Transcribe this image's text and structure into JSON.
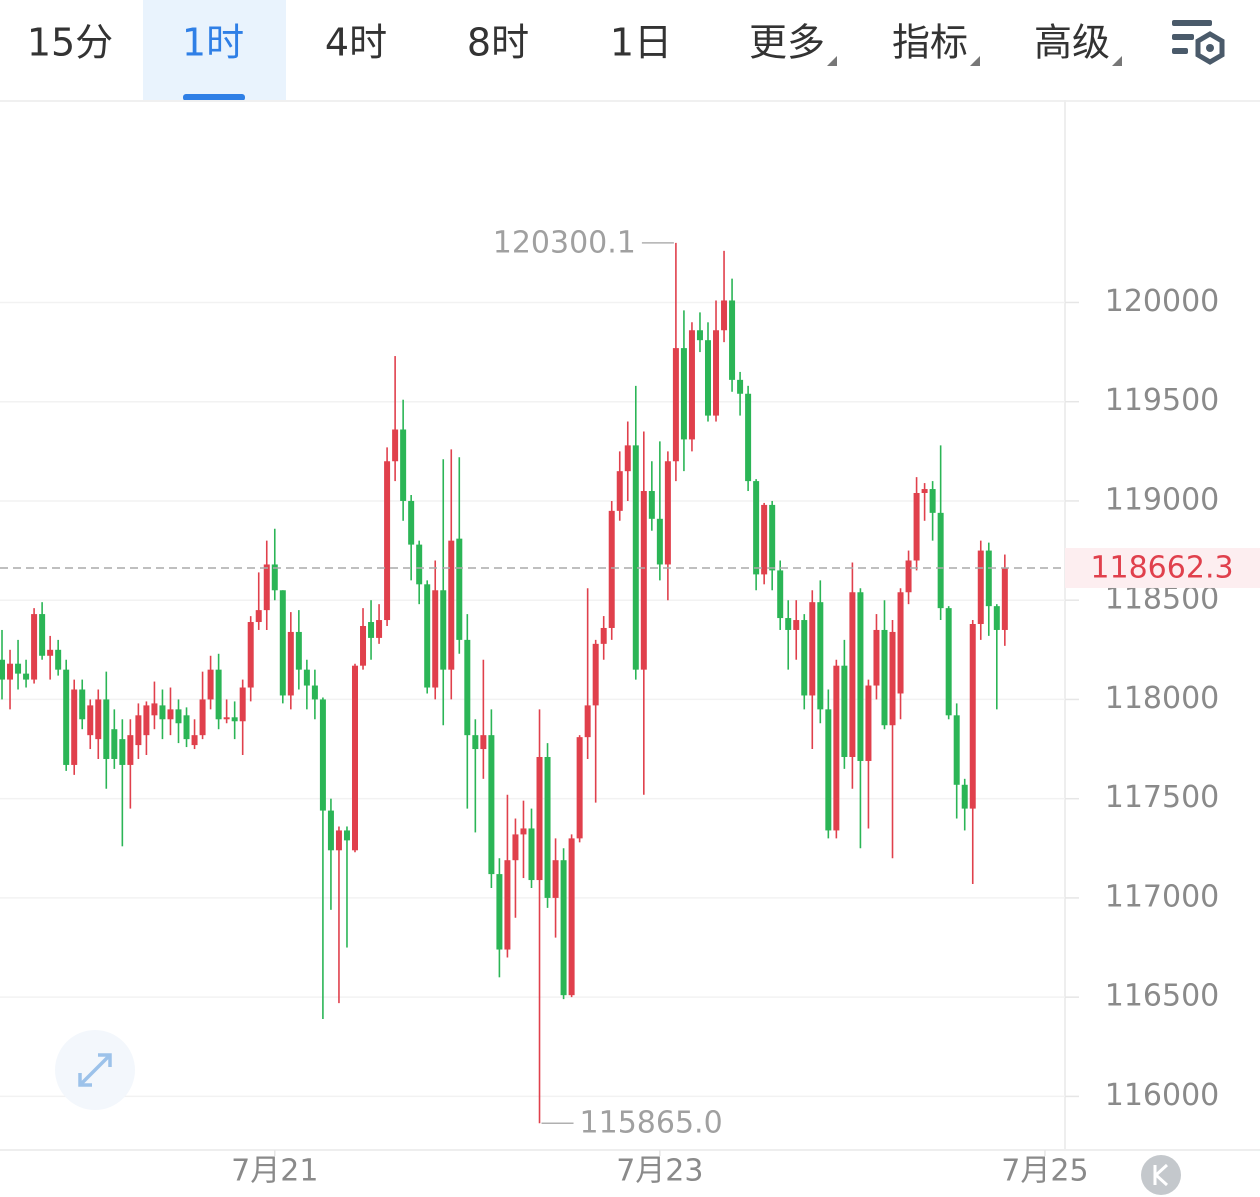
{
  "tabs": [
    "15分",
    "1时",
    "4时",
    "8时",
    "1日",
    "更多",
    "指标",
    "高级"
  ],
  "active_tab": 1,
  "chart_data": {
    "type": "candlestick",
    "up_color": "#e0404c",
    "down_color": "#2bb556",
    "xlim": [
      -0.25,
      132.5
    ],
    "xticks": [
      {
        "value": 34,
        "label": "7月21"
      },
      {
        "value": 82,
        "label": "7月23"
      },
      {
        "value": 130,
        "label": "7月25"
      }
    ],
    "ylim": [
      115730,
      121020
    ],
    "yticks": [
      116000,
      116500,
      117000,
      117500,
      118000,
      118500,
      119000,
      119500,
      120000
    ],
    "grid": true,
    "last_price": 118662.3,
    "annotations": [
      {
        "x": 84,
        "value": 120300.1,
        "label": "120300.1"
      },
      {
        "x": 67,
        "value": 115865,
        "label": "115865.0"
      }
    ],
    "candles": [
      [
        118200,
        118350,
        118000,
        118100
      ],
      [
        118100,
        118250,
        117950,
        118180
      ],
      [
        118180,
        118300,
        118050,
        118130
      ],
      [
        118130,
        118200,
        118060,
        118100
      ],
      [
        118100,
        118460,
        118080,
        118430
      ],
      [
        118430,
        118490,
        118200,
        118220
      ],
      [
        118220,
        118320,
        118100,
        118250
      ],
      [
        118250,
        118300,
        118120,
        118150
      ],
      [
        118150,
        118200,
        117640,
        117670
      ],
      [
        117670,
        118100,
        117620,
        118050
      ],
      [
        118050,
        118100,
        117850,
        117900
      ],
      [
        117820,
        118000,
        117750,
        117970
      ],
      [
        117800,
        118050,
        117700,
        118000
      ],
      [
        118000,
        118140,
        117550,
        117700
      ],
      [
        117850,
        117950,
        117650,
        117700
      ],
      [
        117800,
        117900,
        117260,
        117670
      ],
      [
        117670,
        117900,
        117450,
        117820
      ],
      [
        117770,
        117980,
        117700,
        117920
      ],
      [
        117820,
        117990,
        117720,
        117970
      ],
      [
        117920,
        118090,
        117850,
        117980
      ],
      [
        117970,
        118050,
        117800,
        117900
      ],
      [
        117900,
        118060,
        117820,
        117950
      ],
      [
        117950,
        118000,
        117780,
        117880
      ],
      [
        117920,
        117960,
        117760,
        117800
      ],
      [
        117770,
        117900,
        117750,
        117820
      ],
      [
        117820,
        118140,
        117800,
        118000
      ],
      [
        118000,
        118220,
        117950,
        118150
      ],
      [
        118150,
        118230,
        117850,
        117900
      ],
      [
        117900,
        118000,
        117880,
        117910
      ],
      [
        117910,
        117990,
        117800,
        117890
      ],
      [
        117890,
        118100,
        117720,
        118060
      ],
      [
        118060,
        118420,
        117990,
        118390
      ],
      [
        118390,
        118640,
        118350,
        118450
      ],
      [
        118450,
        118800,
        118350,
        118680
      ],
      [
        118680,
        118860,
        118500,
        118550
      ],
      [
        118550,
        118550,
        117980,
        118020
      ],
      [
        118020,
        118440,
        117950,
        118340
      ],
      [
        118340,
        118450,
        118050,
        118150
      ],
      [
        118150,
        118200,
        117950,
        118070
      ],
      [
        118070,
        118150,
        117900,
        118000
      ],
      [
        118000,
        118010,
        116390,
        117440
      ],
      [
        117440,
        117500,
        116940,
        117240
      ],
      [
        117240,
        117360,
        116470,
        117340
      ],
      [
        117340,
        117360,
        116750,
        117290
      ],
      [
        117240,
        118180,
        117230,
        118170
      ],
      [
        118170,
        118460,
        118150,
        118370
      ],
      [
        118390,
        118500,
        118200,
        118310
      ],
      [
        118310,
        118480,
        118280,
        118400
      ],
      [
        118400,
        119270,
        118370,
        119200
      ],
      [
        119200,
        119730,
        119100,
        119360
      ],
      [
        119360,
        119510,
        118900,
        119000
      ],
      [
        119000,
        119030,
        118600,
        118780
      ],
      [
        118780,
        118800,
        118480,
        118580
      ],
      [
        118580,
        118600,
        118030,
        118060
      ],
      [
        118060,
        118700,
        118000,
        118550
      ],
      [
        118550,
        119210,
        117870,
        118150
      ],
      [
        118150,
        119260,
        118000,
        118800
      ],
      [
        118810,
        119220,
        118230,
        118300
      ],
      [
        118300,
        118430,
        117450,
        117820
      ],
      [
        117820,
        117900,
        117330,
        117750
      ],
      [
        117750,
        118200,
        117600,
        117820
      ],
      [
        117820,
        117950,
        117050,
        117120
      ],
      [
        117120,
        117200,
        116600,
        116740
      ],
      [
        116740,
        117520,
        116700,
        117190
      ],
      [
        117190,
        117400,
        116900,
        117320
      ],
      [
        117320,
        117490,
        117100,
        117350
      ],
      [
        117350,
        117450,
        117050,
        117090
      ],
      [
        117090,
        117950,
        115865,
        117710
      ],
      [
        117710,
        117780,
        116950,
        117000
      ],
      [
        117000,
        117300,
        116800,
        117190
      ],
      [
        117190,
        117250,
        116490,
        116510
      ],
      [
        116510,
        117320,
        116500,
        117300
      ],
      [
        117300,
        117820,
        117280,
        117810
      ],
      [
        117810,
        118560,
        117700,
        117970
      ],
      [
        117970,
        118300,
        117480,
        118280
      ],
      [
        118280,
        118420,
        118200,
        118360
      ],
      [
        118360,
        119000,
        118300,
        118950
      ],
      [
        118950,
        119250,
        118900,
        119150
      ],
      [
        119150,
        119400,
        119000,
        119280
      ],
      [
        119280,
        119580,
        118100,
        118150
      ],
      [
        118150,
        119350,
        117520,
        119050
      ],
      [
        119050,
        119200,
        118850,
        118910
      ],
      [
        118910,
        119300,
        118600,
        118680
      ],
      [
        118680,
        119250,
        118500,
        119200
      ],
      [
        119200,
        120300.1,
        119100,
        119770
      ],
      [
        119770,
        119960,
        119150,
        119310
      ],
      [
        119310,
        119900,
        119250,
        119860
      ],
      [
        119860,
        119950,
        119750,
        119810
      ],
      [
        119810,
        119900,
        119400,
        119430
      ],
      [
        119430,
        120010,
        119400,
        119860
      ],
      [
        119860,
        120260,
        119800,
        120010
      ],
      [
        120010,
        120120,
        119550,
        119610
      ],
      [
        119610,
        119650,
        119430,
        119540
      ],
      [
        119540,
        119580,
        119050,
        119100
      ],
      [
        119100,
        119110,
        118550,
        118630
      ],
      [
        118630,
        118990,
        118580,
        118980
      ],
      [
        118980,
        119000,
        118550,
        118650
      ],
      [
        118650,
        118700,
        118350,
        118410
      ],
      [
        118410,
        118500,
        118150,
        118350
      ],
      [
        118350,
        118500,
        118200,
        118400
      ],
      [
        118400,
        118430,
        117950,
        118020
      ],
      [
        118020,
        118550,
        117750,
        118490
      ],
      [
        118490,
        118600,
        117880,
        117950
      ],
      [
        117950,
        118050,
        117300,
        117340
      ],
      [
        117340,
        118200,
        117300,
        118170
      ],
      [
        118170,
        118300,
        117650,
        117710
      ],
      [
        117710,
        118690,
        117550,
        118540
      ],
      [
        118540,
        118560,
        117250,
        117690
      ],
      [
        117690,
        118100,
        117350,
        118070
      ],
      [
        118070,
        118430,
        118000,
        118350
      ],
      [
        118350,
        118500,
        117850,
        117870
      ],
      [
        117870,
        118400,
        117200,
        118340
      ],
      [
        118030,
        118560,
        117900,
        118540
      ],
      [
        118540,
        118750,
        118480,
        118700
      ],
      [
        118700,
        119120,
        118650,
        119040
      ],
      [
        119040,
        119090,
        118900,
        119060
      ],
      [
        119060,
        119100,
        118800,
        118940
      ],
      [
        118940,
        119280,
        118400,
        118460
      ],
      [
        118460,
        118470,
        117900,
        117920
      ],
      [
        117920,
        117980,
        117400,
        117570
      ],
      [
        117570,
        117600,
        117340,
        117450
      ],
      [
        117450,
        118400,
        117070,
        118380
      ],
      [
        118380,
        118800,
        118300,
        118750
      ],
      [
        118750,
        118790,
        118320,
        118470
      ],
      [
        118470,
        118480,
        117950,
        118350
      ],
      [
        118350,
        118730,
        118270,
        118662.3
      ]
    ]
  }
}
